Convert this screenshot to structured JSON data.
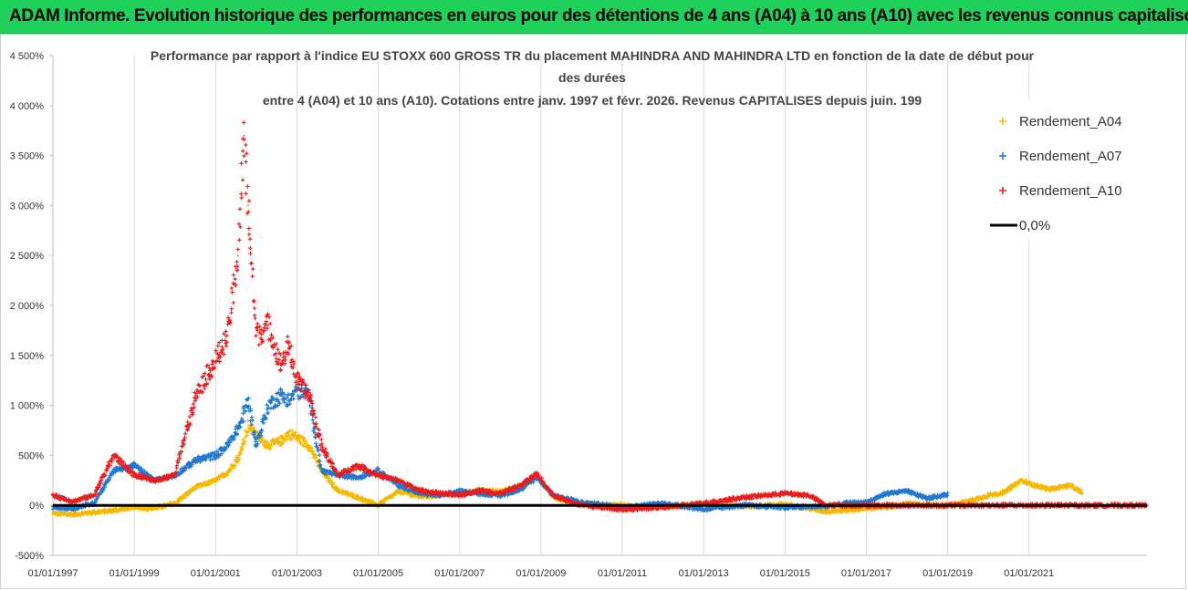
{
  "banner": {
    "text": "ADAM Informe. Evolution historique des performances en euros pour des détentions de 4 ans (A04) à 10 ans (A10) avec les revenus connus capitalisés",
    "color": "#1fd15a"
  },
  "chart_data": {
    "type": "scatter",
    "title_lines": [
      "Performance par rapport à l'indice EU STOXX 600 GROSS TR  du placement MAHINDRA AND MAHINDRA LTD en fonction de la date de début pour",
      "des durées",
      "entre 4 (A04) et 10 ans (A10). Cotations entre janv. 1997 et févr. 2026. Revenus CAPITALISES depuis juin. 199"
    ],
    "xlabel": "",
    "ylabel": "",
    "xlim": [
      1997.0,
      2023.9
    ],
    "ylim": [
      -500,
      4500
    ],
    "y_ticks": [
      -500,
      0,
      500,
      1000,
      1500,
      2000,
      2500,
      3000,
      3500,
      4000,
      4500
    ],
    "y_tick_labels": [
      "-500%",
      "0%",
      "500%",
      "1 000%",
      "1 500%",
      "2 000%",
      "2 500%",
      "3 000%",
      "3 500%",
      "4 000%",
      "4 500%"
    ],
    "x_ticks": [
      1997,
      1999,
      2001,
      2003,
      2005,
      2007,
      2009,
      2011,
      2013,
      2015,
      2017,
      2019,
      2021
    ],
    "x_tick_labels": [
      "01/01/1997",
      "01/01/1999",
      "01/01/2001",
      "01/01/2003",
      "01/01/2005",
      "01/01/2007",
      "01/01/2009",
      "01/01/2011",
      "01/01/2013",
      "01/01/2015",
      "01/01/2017",
      "01/01/2019",
      "01/01/2021"
    ],
    "grid": "vertical",
    "legend_position": "top-right",
    "zero_line": {
      "name": "0,0%",
      "value": 0,
      "color": "#000000"
    },
    "series": [
      {
        "name": "Rendement_A04",
        "color": "#f5b800",
        "x": [
          1997.0,
          1997.5,
          1998.0,
          1998.5,
          1999.0,
          1999.5,
          2000.0,
          2000.5,
          2001.0,
          2001.3,
          2001.6,
          2001.8,
          2002.0,
          2002.3,
          2002.6,
          2002.8,
          2003.0,
          2003.3,
          2003.6,
          2004.0,
          2004.5,
          2005.0,
          2005.5,
          2006.0,
          2006.5,
          2007.0,
          2007.5,
          2008.0,
          2008.5,
          2008.9,
          2009.3,
          2010.0,
          2011.0,
          2012.0,
          2013.0,
          2014.0,
          2015.0,
          2016.0,
          2016.5,
          2017.0,
          2017.5,
          2018.0,
          2018.5,
          2019.0,
          2019.5,
          2020.0,
          2020.4,
          2020.8,
          2021.0,
          2021.5,
          2022.0,
          2022.3
        ],
        "y": [
          -80,
          -90,
          -70,
          -50,
          -20,
          -30,
          20,
          180,
          250,
          330,
          500,
          800,
          700,
          600,
          640,
          720,
          680,
          600,
          350,
          150,
          80,
          0,
          140,
          90,
          100,
          120,
          150,
          140,
          180,
          300,
          80,
          10,
          0,
          -20,
          20,
          -10,
          10,
          -60,
          -50,
          -30,
          -20,
          20,
          0,
          0,
          40,
          100,
          130,
          250,
          220,
          160,
          200,
          130
        ]
      },
      {
        "name": "Rendement_A07",
        "color": "#1f77d0",
        "x": [
          1997.0,
          1997.5,
          1998.0,
          1998.5,
          1999.0,
          1999.5,
          2000.0,
          2000.5,
          2001.0,
          2001.3,
          2001.6,
          2001.8,
          2002.0,
          2002.3,
          2002.6,
          2002.8,
          2003.0,
          2003.3,
          2003.6,
          2004.0,
          2004.5,
          2005.0,
          2005.5,
          2006.0,
          2006.5,
          2007.0,
          2007.5,
          2008.0,
          2008.5,
          2008.9,
          2009.3,
          2010.0,
          2011.0,
          2012.0,
          2013.0,
          2014.0,
          2015.0,
          2016.0,
          2016.5,
          2017.0,
          2017.5,
          2018.0,
          2018.5,
          2019.0
        ],
        "y": [
          -20,
          -30,
          20,
          350,
          400,
          250,
          300,
          450,
          500,
          600,
          800,
          1050,
          600,
          1000,
          1100,
          1050,
          1150,
          1100,
          350,
          300,
          280,
          350,
          200,
          120,
          100,
          140,
          120,
          100,
          160,
          280,
          100,
          30,
          -20,
          20,
          -40,
          0,
          -20,
          -10,
          20,
          30,
          120,
          140,
          70,
          110
        ]
      },
      {
        "name": "Rendement_A10",
        "color": "#e81c1c",
        "x": [
          1997.0,
          1997.5,
          1998.0,
          1998.5,
          1999.0,
          1999.5,
          2000.0,
          2000.5,
          2001.0,
          2001.3,
          2001.55,
          2001.7,
          2001.8,
          2002.0,
          2002.3,
          2002.6,
          2002.8,
          2003.0,
          2003.3,
          2003.6,
          2004.0,
          2004.5,
          2005.0,
          2005.5,
          2006.0,
          2006.5,
          2007.0,
          2007.5,
          2008.0,
          2008.5,
          2008.9,
          2009.3,
          2010.0,
          2011.0,
          2012.0,
          2013.0,
          2014.0,
          2015.0,
          2015.6,
          2016.0,
          2017.0,
          2018.0,
          2019.0,
          2020.0,
          2021.0,
          2022.0,
          2023.0,
          2023.9
        ],
        "y": [
          100,
          40,
          100,
          500,
          300,
          250,
          300,
          1100,
          1450,
          1700,
          2500,
          3700,
          3000,
          1700,
          1800,
          1400,
          1600,
          1250,
          1100,
          600,
          300,
          400,
          300,
          250,
          150,
          120,
          100,
          150,
          120,
          200,
          320,
          100,
          0,
          -40,
          -20,
          20,
          80,
          120,
          100,
          0,
          0,
          0,
          0,
          0,
          0,
          0,
          0,
          0
        ]
      }
    ]
  }
}
